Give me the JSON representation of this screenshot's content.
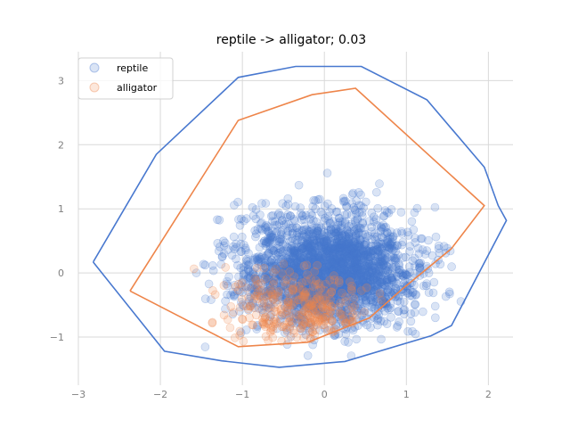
{
  "chart_data": {
    "type": "scatter",
    "title": "reptile -> alligator; 0.03",
    "xlabel": "",
    "ylabel": "",
    "xlim": [
      -3.0,
      2.3
    ],
    "ylim": [
      -1.75,
      3.45
    ],
    "x_ticks": [
      -3,
      -2,
      -1,
      0,
      1,
      2
    ],
    "y_ticks": [
      -1,
      0,
      1,
      2,
      3
    ],
    "grid": true,
    "legend_position": "top-left",
    "series": [
      {
        "name": "reptile",
        "color": "#4878cf",
        "point_alpha": 0.2,
        "hull_color": "#4878cf",
        "cluster": {
          "center": [
            0.05,
            0.05
          ],
          "spread": [
            0.75,
            0.6
          ],
          "count": 2600
        },
        "hull": [
          [
            -2.82,
            0.17
          ],
          [
            -2.05,
            1.85
          ],
          [
            -1.05,
            3.05
          ],
          [
            -0.35,
            3.22
          ],
          [
            0.45,
            3.22
          ],
          [
            1.25,
            2.7
          ],
          [
            1.95,
            1.65
          ],
          [
            2.12,
            1.05
          ],
          [
            2.22,
            0.82
          ],
          [
            1.55,
            -0.82
          ],
          [
            1.3,
            -0.98
          ],
          [
            0.25,
            -1.38
          ],
          [
            -0.55,
            -1.47
          ],
          [
            -1.25,
            -1.37
          ],
          [
            -1.95,
            -1.22
          ],
          [
            -2.82,
            0.17
          ]
        ]
      },
      {
        "name": "alligator",
        "color": "#ee854a",
        "point_alpha": 0.2,
        "hull_color": "#ee854a",
        "cluster": {
          "center": [
            -0.35,
            -0.55
          ],
          "spread": [
            0.6,
            0.45
          ],
          "count": 320
        },
        "hull": [
          [
            -2.37,
            -0.28
          ],
          [
            -1.05,
            2.38
          ],
          [
            -0.15,
            2.78
          ],
          [
            0.38,
            2.88
          ],
          [
            1.95,
            1.05
          ],
          [
            1.55,
            0.38
          ],
          [
            0.95,
            -0.25
          ],
          [
            0.55,
            -0.7
          ],
          [
            -0.2,
            -1.08
          ],
          [
            -1.05,
            -1.15
          ],
          [
            -2.37,
            -0.28
          ]
        ]
      }
    ]
  }
}
